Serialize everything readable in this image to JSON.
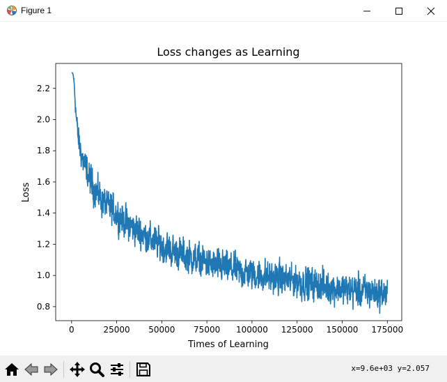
{
  "window": {
    "title": "Figure 1",
    "icons": {
      "app": "matplotlib-figure-icon",
      "minimize": "minimize-icon",
      "maximize": "maximize-icon",
      "close": "close-icon"
    }
  },
  "toolbar": {
    "buttons": [
      {
        "name": "home-button",
        "icon": "home-icon"
      },
      {
        "name": "back-button",
        "icon": "back-arrow-icon"
      },
      {
        "name": "forward-button",
        "icon": "forward-arrow-icon"
      },
      {
        "name": "pan-button",
        "icon": "move-icon"
      },
      {
        "name": "zoom-button",
        "icon": "magnifier-icon"
      },
      {
        "name": "configure-subplots-button",
        "icon": "sliders-icon"
      },
      {
        "name": "save-button",
        "icon": "floppy-disk-icon"
      }
    ],
    "coordinates": "x=9.6e+03 y=2.057"
  },
  "chart_data": {
    "type": "line",
    "title": "Loss changes as Learning",
    "xlabel": "Times of Learning",
    "ylabel": "Loss",
    "xlim": [
      -8800,
      183000
    ],
    "ylim": [
      0.71,
      2.36
    ],
    "xticks": [
      0,
      25000,
      50000,
      75000,
      100000,
      125000,
      150000,
      175000
    ],
    "xtick_labels": [
      "0",
      "25000",
      "50000",
      "75000",
      "100000",
      "125000",
      "150000",
      "175000"
    ],
    "yticks": [
      0.8,
      1.0,
      1.2,
      1.4,
      1.6,
      1.8,
      2.0,
      2.2
    ],
    "ytick_labels": [
      "0.8",
      "1.0",
      "1.2",
      "1.4",
      "1.6",
      "1.8",
      "2.0",
      "2.2"
    ],
    "grid": false,
    "color": "#1f77b4",
    "series": [
      {
        "name": "loss",
        "x": [
          0,
          500,
          1000,
          1500,
          2000,
          2500,
          3000,
          3500,
          4000,
          5000,
          6000,
          7000,
          8000,
          9000,
          10000,
          12000,
          14000,
          16000,
          18000,
          20000,
          22500,
          25000,
          27500,
          30000,
          32500,
          35000,
          37500,
          40000,
          42500,
          45000,
          47500,
          50000,
          55000,
          60000,
          65000,
          70000,
          75000,
          80000,
          85000,
          90000,
          95000,
          100000,
          105000,
          110000,
          115000,
          120000,
          125000,
          130000,
          135000,
          140000,
          145000,
          150000,
          155000,
          160000,
          165000,
          170000,
          175000
        ],
        "mean": [
          2.3,
          2.3,
          2.28,
          2.22,
          2.12,
          2.03,
          1.96,
          1.9,
          1.86,
          1.8,
          1.75,
          1.71,
          1.68,
          1.65,
          1.62,
          1.57,
          1.53,
          1.5,
          1.47,
          1.44,
          1.42,
          1.39,
          1.37,
          1.34,
          1.32,
          1.3,
          1.28,
          1.26,
          1.24,
          1.22,
          1.21,
          1.19,
          1.16,
          1.14,
          1.12,
          1.1,
          1.08,
          1.06,
          1.05,
          1.04,
          1.02,
          1.01,
          1.0,
          0.99,
          0.98,
          0.97,
          0.96,
          0.95,
          0.94,
          0.93,
          0.92,
          0.91,
          0.905,
          0.9,
          0.895,
          0.89,
          0.885
        ],
        "noise": [
          0.0,
          0.0,
          0.01,
          0.02,
          0.04,
          0.05,
          0.06,
          0.07,
          0.07,
          0.07,
          0.07,
          0.08,
          0.08,
          0.08,
          0.08,
          0.08,
          0.08,
          0.08,
          0.08,
          0.08,
          0.08,
          0.08,
          0.08,
          0.08,
          0.08,
          0.08,
          0.08,
          0.08,
          0.08,
          0.08,
          0.08,
          0.08,
          0.08,
          0.08,
          0.08,
          0.08,
          0.08,
          0.08,
          0.08,
          0.08,
          0.08,
          0.08,
          0.08,
          0.08,
          0.08,
          0.08,
          0.08,
          0.08,
          0.08,
          0.08,
          0.08,
          0.08,
          0.08,
          0.08,
          0.08,
          0.08,
          0.08
        ]
      }
    ],
    "observed_min": 0.74,
    "observed_max_tail": 1.06
  }
}
